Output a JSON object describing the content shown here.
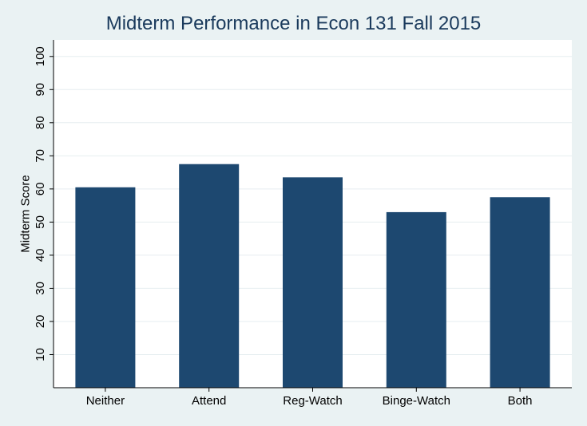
{
  "chart_data": {
    "type": "bar",
    "title": "Midterm Performance in Econ 131 Fall 2015",
    "xlabel": "",
    "ylabel": "Midterm Score",
    "categories": [
      "Neither",
      "Attend",
      "Reg-Watch",
      "Binge-Watch",
      "Both"
    ],
    "values": [
      60.5,
      67.5,
      63.5,
      53,
      57.5
    ],
    "ylim": [
      0,
      105
    ],
    "yticks": [
      10,
      20,
      30,
      40,
      50,
      60,
      70,
      80,
      90,
      100
    ],
    "grid": true,
    "bar_color": "#1d4870",
    "plot_background": "#ffffff",
    "figure_background": "#eaf2f3",
    "grid_color": "#e6eef0"
  }
}
